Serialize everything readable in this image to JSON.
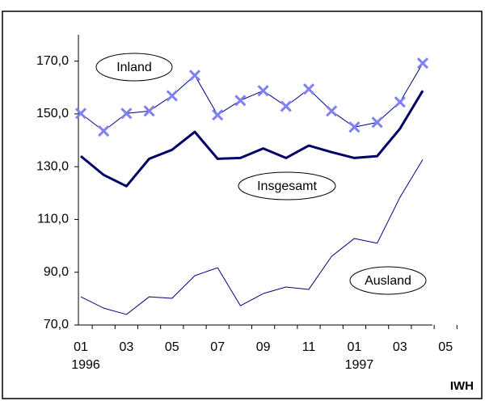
{
  "chart_data": {
    "type": "line",
    "categories": [
      "01",
      null,
      "03",
      null,
      "05",
      null,
      "07",
      null,
      "09",
      null,
      "11",
      null,
      "01",
      null,
      "03",
      null,
      "05"
    ],
    "years": [
      "1996",
      null,
      null,
      null,
      null,
      null,
      null,
      null,
      null,
      null,
      null,
      null,
      "1997",
      null,
      null,
      null,
      null
    ],
    "ylim": [
      70,
      180
    ],
    "yticks": [
      {
        "value": 70,
        "label": "70,0"
      },
      {
        "value": 90,
        "label": "90,0"
      },
      {
        "value": 110,
        "label": "110,0"
      },
      {
        "value": 130,
        "label": "130,0"
      },
      {
        "value": 150,
        "label": "150,0"
      },
      {
        "value": 170,
        "label": "170,0"
      }
    ],
    "series": [
      {
        "name": "Inland",
        "color": "#000080",
        "marker_color": "#8080f0",
        "marker": "x",
        "line_width": 1,
        "values": [
          150.2,
          143.5,
          150.2,
          151.1,
          156.9,
          164.6,
          149.6,
          155.1,
          158.8,
          152.9,
          159.4,
          151.1,
          145.0,
          146.8,
          154.5,
          169.2,
          null
        ]
      },
      {
        "name": "Insgesamt",
        "color": "#000066",
        "line_width": 3,
        "values": [
          134.0,
          126.9,
          122.6,
          133.0,
          136.4,
          143.2,
          133.0,
          133.3,
          136.9,
          133.3,
          138.0,
          135.5,
          133.3,
          134.0,
          144.4,
          158.8,
          null
        ]
      },
      {
        "name": "Ausland",
        "color": "#000080",
        "line_width": 1,
        "values": [
          80.7,
          76.4,
          74.0,
          80.7,
          80.1,
          88.7,
          91.7,
          77.3,
          81.9,
          84.4,
          83.5,
          96.0,
          102.8,
          101.0,
          118.4,
          132.7,
          null
        ]
      }
    ],
    "source": "IWH"
  }
}
